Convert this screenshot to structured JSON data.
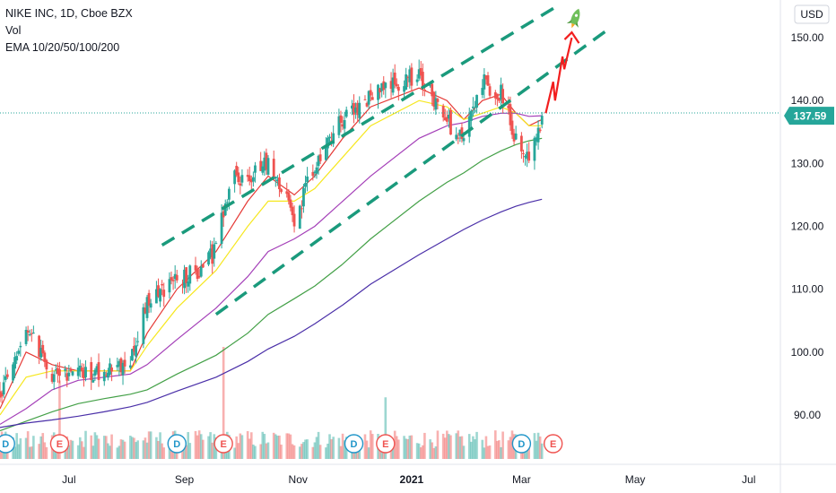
{
  "header": {
    "symbol_line": "NIKE INC, 1D, Cboe BZX",
    "vol_label": "Vol",
    "ema_label": "EMA 10/20/50/100/200"
  },
  "axis": {
    "currency": "USD",
    "last_price": "137.59"
  },
  "colors": {
    "up": "#26a69a",
    "down": "#ef5350",
    "ema10": "#e53935",
    "ema20": "#f6e71f",
    "ema50": "#a43fb8",
    "ema100": "#43a047",
    "ema200": "#4a2fa8",
    "channel": "#1a9a7c",
    "arrow": "#f21e1e",
    "rocket": "#6fbf5a",
    "dividend": "#2196c9",
    "earnings": "#ef5350",
    "last_price_bg": "#26a69a"
  },
  "chart_data": {
    "type": "candlestick",
    "title": "NIKE INC, 1D, Cboe BZX",
    "y_unit": "USD",
    "ylim": [
      84,
      156
    ],
    "y_ticks": [
      "90.00",
      "100.00",
      "110.00",
      "120.00",
      "130.00",
      "140.00",
      "150.00"
    ],
    "x_ticks": [
      {
        "label": "Jul",
        "date": "2020-07-01"
      },
      {
        "label": "Sep",
        "date": "2020-09-01"
      },
      {
        "label": "Nov",
        "date": "2020-11-01"
      },
      {
        "label": "2021",
        "date": "2021-01-01",
        "bold": true
      },
      {
        "label": "Mar",
        "date": "2021-03-01"
      },
      {
        "label": "May",
        "date": "2021-05-01"
      },
      {
        "label": "Jul",
        "date": "2021-07-01"
      }
    ],
    "x_start": "2020-05-25",
    "x_end": "2021-07-18",
    "price_path": [
      {
        "date": "2020-05-25",
        "close": 93
      },
      {
        "date": "2020-06-08",
        "close": 104
      },
      {
        "date": "2020-06-22",
        "close": 96
      },
      {
        "date": "2020-07-06",
        "close": 97
      },
      {
        "date": "2020-07-20",
        "close": 97
      },
      {
        "date": "2020-08-03",
        "close": 98
      },
      {
        "date": "2020-08-12",
        "close": 108
      },
      {
        "date": "2020-08-28",
        "close": 112
      },
      {
        "date": "2020-09-08",
        "close": 113
      },
      {
        "date": "2020-09-18",
        "close": 116
      },
      {
        "date": "2020-09-25",
        "close": 127
      },
      {
        "date": "2020-10-05",
        "close": 128
      },
      {
        "date": "2020-10-16",
        "close": 130
      },
      {
        "date": "2020-10-30",
        "close": 121
      },
      {
        "date": "2020-11-10",
        "close": 130
      },
      {
        "date": "2020-11-25",
        "close": 137
      },
      {
        "date": "2020-12-10",
        "close": 141
      },
      {
        "date": "2020-12-18",
        "close": 142
      },
      {
        "date": "2021-01-05",
        "close": 144
      },
      {
        "date": "2021-01-20",
        "close": 137
      },
      {
        "date": "2021-01-29",
        "close": 133
      },
      {
        "date": "2021-02-08",
        "close": 143
      },
      {
        "date": "2021-02-18",
        "close": 141
      },
      {
        "date": "2021-02-26",
        "close": 134
      },
      {
        "date": "2021-03-05",
        "close": 131
      },
      {
        "date": "2021-03-12",
        "close": 137.59
      }
    ],
    "ema_series": [
      {
        "name": "EMA 10",
        "color_key": "ema10",
        "points": [
          [
            "2020-05-25",
            91
          ],
          [
            "2020-06-08",
            100
          ],
          [
            "2020-06-22",
            98
          ],
          [
            "2020-07-06",
            97
          ],
          [
            "2020-07-20",
            97
          ],
          [
            "2020-08-03",
            97
          ],
          [
            "2020-08-12",
            103
          ],
          [
            "2020-08-28",
            110
          ],
          [
            "2020-09-18",
            116
          ],
          [
            "2020-10-05",
            124
          ],
          [
            "2020-10-16",
            128
          ],
          [
            "2020-10-30",
            125
          ],
          [
            "2020-11-10",
            128
          ],
          [
            "2020-11-25",
            134
          ],
          [
            "2020-12-10",
            139
          ],
          [
            "2021-01-05",
            142
          ],
          [
            "2021-01-20",
            140
          ],
          [
            "2021-01-29",
            137
          ],
          [
            "2021-02-08",
            140
          ],
          [
            "2021-02-18",
            141
          ],
          [
            "2021-02-26",
            138
          ],
          [
            "2021-03-05",
            136
          ],
          [
            "2021-03-12",
            137
          ]
        ]
      },
      {
        "name": "EMA 20",
        "color_key": "ema20",
        "points": [
          [
            "2020-05-25",
            90
          ],
          [
            "2020-06-08",
            96
          ],
          [
            "2020-06-22",
            97
          ],
          [
            "2020-07-06",
            97
          ],
          [
            "2020-07-20",
            97
          ],
          [
            "2020-08-03",
            97
          ],
          [
            "2020-08-12",
            101
          ],
          [
            "2020-08-28",
            107
          ],
          [
            "2020-09-18",
            113
          ],
          [
            "2020-10-05",
            120
          ],
          [
            "2020-10-16",
            124
          ],
          [
            "2020-10-30",
            124
          ],
          [
            "2020-11-10",
            126
          ],
          [
            "2020-11-25",
            131
          ],
          [
            "2020-12-10",
            136
          ],
          [
            "2021-01-05",
            140
          ],
          [
            "2021-01-20",
            139
          ],
          [
            "2021-01-29",
            137
          ],
          [
            "2021-02-08",
            138
          ],
          [
            "2021-02-18",
            139
          ],
          [
            "2021-02-26",
            138
          ],
          [
            "2021-03-05",
            136
          ],
          [
            "2021-03-12",
            136
          ]
        ]
      },
      {
        "name": "EMA 50",
        "color_key": "ema50",
        "points": [
          [
            "2020-05-25",
            88.5
          ],
          [
            "2020-06-08",
            91
          ],
          [
            "2020-06-22",
            94
          ],
          [
            "2020-07-06",
            95.5
          ],
          [
            "2020-07-20",
            96
          ],
          [
            "2020-08-03",
            96.5
          ],
          [
            "2020-08-12",
            98
          ],
          [
            "2020-08-28",
            102
          ],
          [
            "2020-09-18",
            107
          ],
          [
            "2020-10-05",
            112
          ],
          [
            "2020-10-16",
            116
          ],
          [
            "2020-10-30",
            118
          ],
          [
            "2020-11-10",
            120
          ],
          [
            "2020-11-25",
            124
          ],
          [
            "2020-12-10",
            128
          ],
          [
            "2021-01-05",
            134
          ],
          [
            "2021-01-20",
            136
          ],
          [
            "2021-01-29",
            136.5
          ],
          [
            "2021-02-08",
            137.5
          ],
          [
            "2021-02-18",
            138
          ],
          [
            "2021-02-26",
            138
          ],
          [
            "2021-03-05",
            137.5
          ],
          [
            "2021-03-12",
            137.6
          ]
        ]
      },
      {
        "name": "EMA 100",
        "color_key": "ema100",
        "points": [
          [
            "2020-05-25",
            87.5
          ],
          [
            "2020-06-08",
            89
          ],
          [
            "2020-06-22",
            90.5
          ],
          [
            "2020-07-06",
            91.8
          ],
          [
            "2020-07-20",
            92.6
          ],
          [
            "2020-08-03",
            93.3
          ],
          [
            "2020-08-12",
            94
          ],
          [
            "2020-08-28",
            96.5
          ],
          [
            "2020-09-18",
            99.5
          ],
          [
            "2020-10-05",
            103
          ],
          [
            "2020-10-16",
            106
          ],
          [
            "2020-10-30",
            108.5
          ],
          [
            "2020-11-10",
            110.5
          ],
          [
            "2020-11-25",
            114
          ],
          [
            "2020-12-10",
            118
          ],
          [
            "2021-01-05",
            124
          ],
          [
            "2021-01-20",
            127
          ],
          [
            "2021-01-29",
            128.5
          ],
          [
            "2021-02-08",
            130.5
          ],
          [
            "2021-02-18",
            132
          ],
          [
            "2021-02-26",
            133
          ],
          [
            "2021-03-05",
            133.6
          ],
          [
            "2021-03-12",
            134
          ]
        ]
      },
      {
        "name": "EMA 200",
        "color_key": "ema200",
        "points": [
          [
            "2020-05-25",
            88
          ],
          [
            "2020-06-08",
            88.7
          ],
          [
            "2020-06-22",
            89.2
          ],
          [
            "2020-07-06",
            89.8
          ],
          [
            "2020-07-20",
            90.5
          ],
          [
            "2020-08-03",
            91.3
          ],
          [
            "2020-08-12",
            92
          ],
          [
            "2020-08-28",
            93.8
          ],
          [
            "2020-09-18",
            96
          ],
          [
            "2020-10-05",
            98.5
          ],
          [
            "2020-10-16",
            100.5
          ],
          [
            "2020-10-30",
            102.5
          ],
          [
            "2020-11-10",
            104.5
          ],
          [
            "2020-11-25",
            107.5
          ],
          [
            "2020-12-10",
            110.8
          ],
          [
            "2021-01-05",
            115.5
          ],
          [
            "2021-01-20",
            118
          ],
          [
            "2021-01-29",
            119.5
          ],
          [
            "2021-02-08",
            121
          ],
          [
            "2021-02-18",
            122.3
          ],
          [
            "2021-02-26",
            123.2
          ],
          [
            "2021-03-05",
            123.8
          ],
          [
            "2021-03-12",
            124.3
          ]
        ]
      }
    ],
    "volume_spikes": [
      {
        "date": "2020-06-26",
        "level": 0.7
      },
      {
        "date": "2020-09-22",
        "level": 1.0
      },
      {
        "date": "2020-12-18",
        "level": 0.55
      }
    ],
    "channel_lines": [
      {
        "from": {
          "date": "2020-08-20",
          "price": 117
        },
        "to": {
          "date": "2021-03-20",
          "price": 155
        }
      },
      {
        "from": {
          "date": "2020-09-18",
          "price": 106
        },
        "to": {
          "date": "2021-04-15",
          "price": 151
        }
      }
    ],
    "events": [
      {
        "type": "D",
        "date": "2020-05-28"
      },
      {
        "type": "E",
        "date": "2020-06-26"
      },
      {
        "type": "D",
        "date": "2020-08-28"
      },
      {
        "type": "E",
        "date": "2020-09-22"
      },
      {
        "type": "D",
        "date": "2020-12-01"
      },
      {
        "type": "E",
        "date": "2020-12-18"
      },
      {
        "type": "D",
        "date": "2021-03-01"
      },
      {
        "type": "E",
        "date": "2021-03-18"
      }
    ]
  }
}
